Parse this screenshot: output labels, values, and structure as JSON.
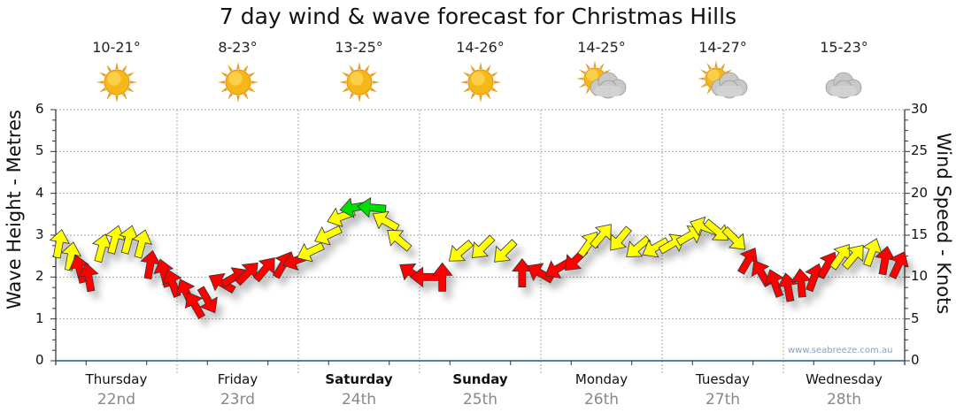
{
  "chart_data": {
    "type": "scatter",
    "title": "7 day wind & wave forecast for Christmas Hills",
    "ylabel": "Wave Height - Metres",
    "ylabel_right": "Wind Speed - Knots",
    "ylim": [
      0,
      6
    ],
    "ylim_right": [
      0,
      30
    ],
    "yticks": [
      "0",
      "1",
      "2",
      "3",
      "4",
      "5",
      "6"
    ],
    "yticks_right": [
      "0",
      "5",
      "10",
      "15",
      "20",
      "25",
      "30"
    ],
    "grid": true,
    "x_unit": "hours from Thursday 00:00",
    "xlim": [
      0,
      168
    ],
    "days": [
      {
        "name": "Thursday",
        "date": "22nd",
        "temp": "10-21°",
        "icon": "sun",
        "bold": false
      },
      {
        "name": "Friday",
        "date": "23rd",
        "temp": "8-23°",
        "icon": "sun",
        "bold": false
      },
      {
        "name": "Saturday",
        "date": "24th",
        "temp": "13-25°",
        "icon": "sun",
        "bold": true
      },
      {
        "name": "Sunday",
        "date": "25th",
        "temp": "14-26°",
        "icon": "sun",
        "bold": true
      },
      {
        "name": "Monday",
        "date": "26th",
        "temp": "14-25°",
        "icon": "sun-cloud",
        "bold": false
      },
      {
        "name": "Tuesday",
        "date": "27th",
        "temp": "14-27°",
        "icon": "sun-cloud",
        "bold": false
      },
      {
        "name": "Wednesday",
        "date": "28th",
        "temp": "15-23°",
        "icon": "cloud",
        "bold": false
      }
    ],
    "wind_series": {
      "name": "Wind speed (knots) & direction (arrow heading, degrees)",
      "points": [
        [
          0.7,
          14,
          10
        ],
        [
          3,
          12.5,
          10
        ],
        [
          4.7,
          11,
          345
        ],
        [
          6.5,
          10,
          350
        ],
        [
          9.1,
          13.5,
          15
        ],
        [
          11.7,
          14.5,
          15
        ],
        [
          14.4,
          14.5,
          15
        ],
        [
          17,
          14,
          15
        ],
        [
          18.7,
          11.5,
          10
        ],
        [
          21.4,
          10.5,
          345
        ],
        [
          23.1,
          9.3,
          340
        ],
        [
          25.8,
          8.2,
          335
        ],
        [
          27.5,
          6.7,
          330
        ],
        [
          30.1,
          7.2,
          150
        ],
        [
          32.8,
          9.3,
          300
        ],
        [
          35.4,
          10,
          60
        ],
        [
          38,
          10.5,
          45
        ],
        [
          41.5,
          11,
          40
        ],
        [
          45,
          11.5,
          30
        ],
        [
          47.6,
          12,
          250
        ],
        [
          50.3,
          13,
          245
        ],
        [
          53.8,
          15,
          245
        ],
        [
          56.4,
          17.2,
          250
        ],
        [
          59,
          18.3,
          260
        ],
        [
          62.5,
          18.3,
          275
        ],
        [
          65.2,
          16.7,
          300
        ],
        [
          67.8,
          14.5,
          310
        ],
        [
          70.4,
          10.5,
          305
        ],
        [
          73,
          10,
          270
        ],
        [
          76.5,
          10,
          0
        ],
        [
          80,
          13,
          230
        ],
        [
          84.4,
          13.5,
          225
        ],
        [
          88.8,
          13,
          225
        ],
        [
          92.3,
          10.5,
          0
        ],
        [
          95.8,
          10.5,
          300
        ],
        [
          99.3,
          11,
          240
        ],
        [
          102.8,
          12,
          225
        ],
        [
          105.5,
          14,
          35
        ],
        [
          108.1,
          15,
          40
        ],
        [
          111.6,
          14.5,
          220
        ],
        [
          115.1,
          13.5,
          230
        ],
        [
          118.6,
          13.5,
          240
        ],
        [
          122.1,
          14,
          60
        ],
        [
          125.6,
          15,
          60
        ],
        [
          128.2,
          16,
          290
        ],
        [
          130.9,
          15.5,
          130
        ],
        [
          134.4,
          14.5,
          135
        ],
        [
          137,
          12,
          30
        ],
        [
          139.6,
          10.5,
          330
        ],
        [
          142.3,
          9.3,
          340
        ],
        [
          144.9,
          8.8,
          350
        ],
        [
          147.5,
          9.3,
          355
        ],
        [
          150.1,
          10,
          20
        ],
        [
          152.8,
          11.5,
          30
        ],
        [
          155.4,
          12.5,
          35
        ],
        [
          158,
          12.5,
          40
        ],
        [
          161.5,
          13,
          20
        ],
        [
          164.1,
          12,
          10
        ],
        [
          166.8,
          11.5,
          25
        ]
      ]
    },
    "color_scale": {
      "below_12_5": "#ff0000",
      "below_17_5": "#ffff00",
      "above": "#00dd00"
    },
    "watermark": "www.seabreeze.com.au"
  }
}
